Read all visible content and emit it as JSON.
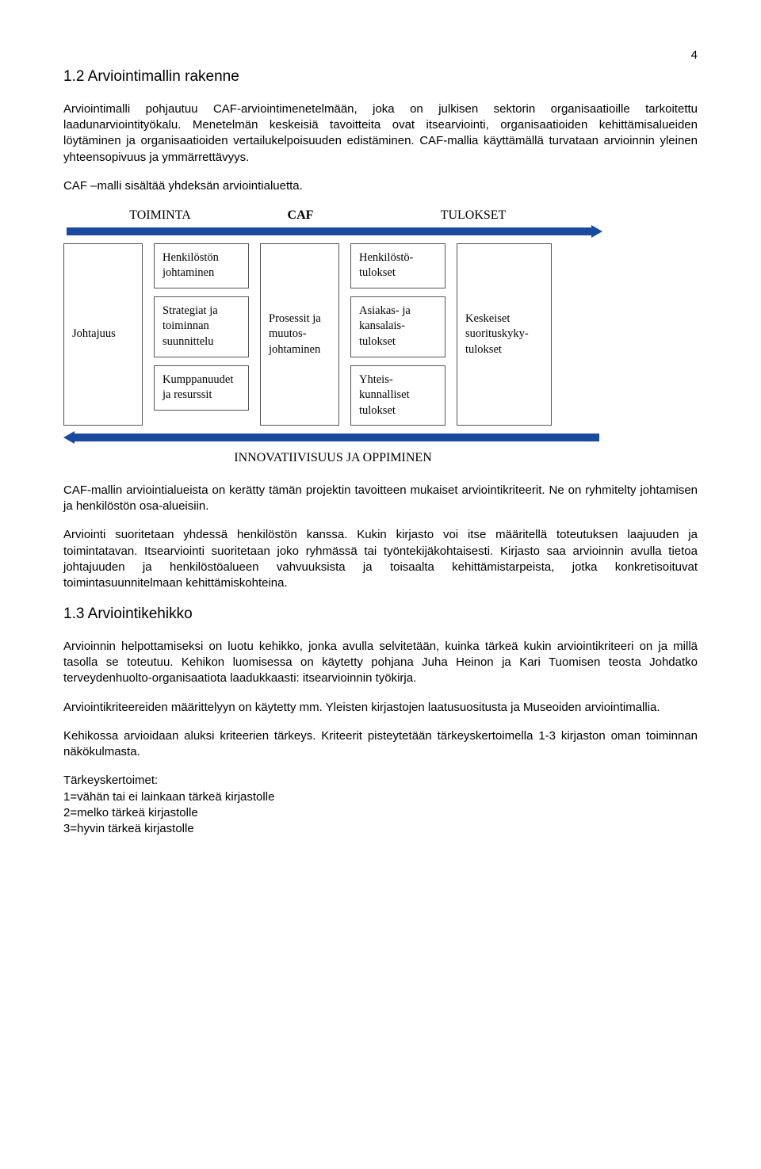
{
  "page_number": "4",
  "heading_1_2": "1.2 Arviointimallin rakenne",
  "para_1": "Arviointimalli pohjautuu CAF-arviointimenetelmään, joka on julkisen sektorin organisaatioille tarkoitettu laadunarviointityökalu. Menetelmän keskeisiä tavoitteita ovat itsearviointi, organisaatioiden kehittämisalueiden löytäminen ja organisaatioiden vertailukelpoisuuden edistäminen. CAF-mallia käyttämällä turvataan arvioinnin yleinen yhteensopivuus ja ymmärrettävyys.",
  "para_2": "CAF –malli sisältää yhdeksän arviointialuetta.",
  "diagram": {
    "top_left_label": "TOIMINTA",
    "top_center_label": "CAF",
    "top_right_label": "TULOKSET",
    "bottom_label": "INNOVATIIVISUUS JA OPPIMINEN",
    "arrow_color": "#1a4aa0",
    "box_border_color": "#555555",
    "boxes": {
      "col1": {
        "b1": "Johtajuus"
      },
      "col2": {
        "b1": "Henkilöstön johtaminen",
        "b2": "Strategiat ja toiminnan suunnittelu",
        "b3": "Kumppanuudet ja resurssit"
      },
      "col3": {
        "b1": "Prosessit ja muutos-johtaminen"
      },
      "col4": {
        "b1": "Henkilöstö-tulokset",
        "b2": "Asiakas- ja kansalais-tulokset",
        "b3": "Yhteis-kunnalliset tulokset"
      },
      "col5": {
        "b1": "Keskeiset suorituskyky-tulokset"
      }
    }
  },
  "para_3": "CAF-mallin arviointialueista on kerätty tämän projektin tavoitteen mukaiset arviointikriteerit. Ne on ryhmitelty johtamisen ja henkilöstön osa-alueisiin.",
  "para_4": "Arviointi suoritetaan yhdessä henkilöstön kanssa. Kukin kirjasto voi itse määritellä toteutuksen laajuuden ja toimintatavan. Itsearviointi suoritetaan joko ryhmässä tai työntekijäkohtaisesti. Kirjasto saa arvioinnin avulla tietoa johtajuuden ja henkilöstöalueen vahvuuksista ja toisaalta kehittämistarpeista, jotka konkretisoituvat toimintasuunnitelmaan kehittämiskohteina.",
  "heading_1_3": "1.3 Arviointikehikko",
  "para_5": "Arvioinnin helpottamiseksi on luotu kehikko, jonka avulla selvitetään, kuinka tärkeä kukin arviointikriteeri on ja millä tasolla se toteutuu. Kehikon luomisessa on käytetty pohjana Juha Heinon ja Kari Tuomisen teosta Johdatko terveydenhuolto-organisaatiota laadukkaasti: itsearvioinnin työkirja.",
  "para_6": "Arviointikriteereiden määrittelyyn on käytetty mm. Yleisten kirjastojen laatusuositusta ja Museoiden arviointimallia.",
  "para_7": "Kehikossa arvioidaan aluksi kriteerien tärkeys. Kriteerit pisteytetään tärkeyskertoimella 1-3 kirjaston oman toiminnan näkökulmasta.",
  "para_8_label": "Tärkeyskertoimet:",
  "para_8_line1": "1=vähän tai ei lainkaan tärkeä kirjastolle",
  "para_8_line2": "2=melko tärkeä kirjastolle",
  "para_8_line3": "3=hyvin tärkeä kirjastolle"
}
